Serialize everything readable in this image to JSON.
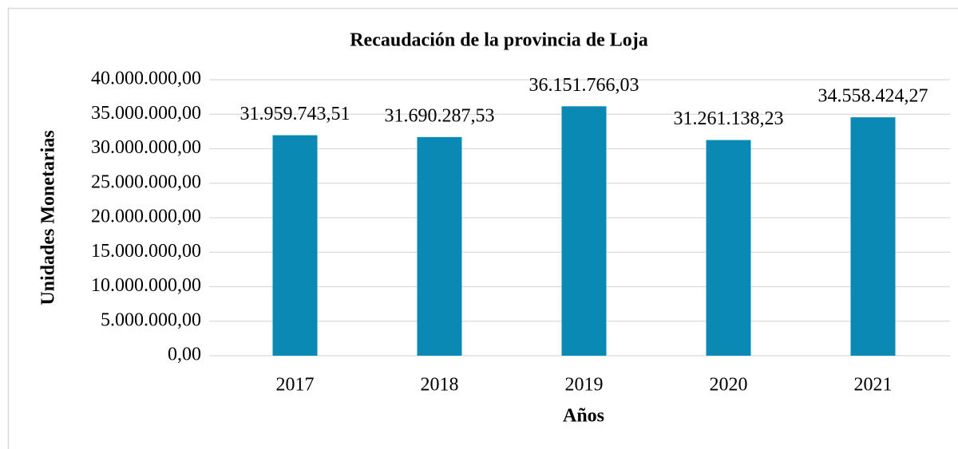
{
  "chart_data": {
    "type": "bar",
    "title": "Recaudación de la provincia de Loja",
    "x_label": "Años",
    "y_label": "Unidades Monetarias",
    "categories": [
      "2017",
      "2018",
      "2019",
      "2020",
      "2021"
    ],
    "values": [
      31959743.51,
      31690287.53,
      36151766.03,
      31261138.23,
      34558424.27
    ],
    "value_labels": [
      "31.959.743,51",
      "31.690.287,53",
      "36.151.766,03",
      "31.261.138,23",
      "34.558.424,27"
    ],
    "color": "#0a89b4",
    "ylim": [
      0,
      40000000
    ],
    "yticks": [
      {
        "value": 0,
        "label": "0,00"
      },
      {
        "value": 5000000,
        "label": "5.000.000,00"
      },
      {
        "value": 10000000,
        "label": "10.000.000,00"
      },
      {
        "value": 15000000,
        "label": "15.000.000,00"
      },
      {
        "value": 20000000,
        "label": "20.000.000,00"
      },
      {
        "value": 25000000,
        "label": "25.000.000,00"
      },
      {
        "value": 30000000,
        "label": "30.000.000,00"
      },
      {
        "value": 35000000,
        "label": "35.000.000,00"
      },
      {
        "value": 40000000,
        "label": "40.000.000,00"
      }
    ],
    "grid": true
  }
}
